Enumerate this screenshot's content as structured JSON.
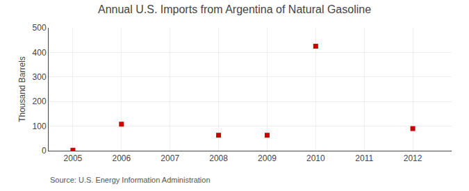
{
  "chart_data": {
    "type": "scatter",
    "title": "Annual U.S. Imports from Argentina of Natural Gasoline",
    "ylabel": "Thousand Barrels",
    "annotations": [
      "Source: U.S. Energy Information Administration"
    ],
    "x": [
      2005,
      2006,
      2008,
      2009,
      2010,
      2012
    ],
    "values": [
      2,
      108,
      63,
      63,
      425,
      90
    ],
    "color": "#CC0000",
    "marker": "square",
    "xlim": [
      2004.5,
      2012.8
    ],
    "xticks": [
      2005,
      2006,
      2007,
      2008,
      2009,
      2010,
      2011,
      2012
    ],
    "ylim": [
      0,
      500
    ],
    "yticks": [
      0,
      100,
      200,
      300,
      400,
      500
    ],
    "grid": true
  }
}
